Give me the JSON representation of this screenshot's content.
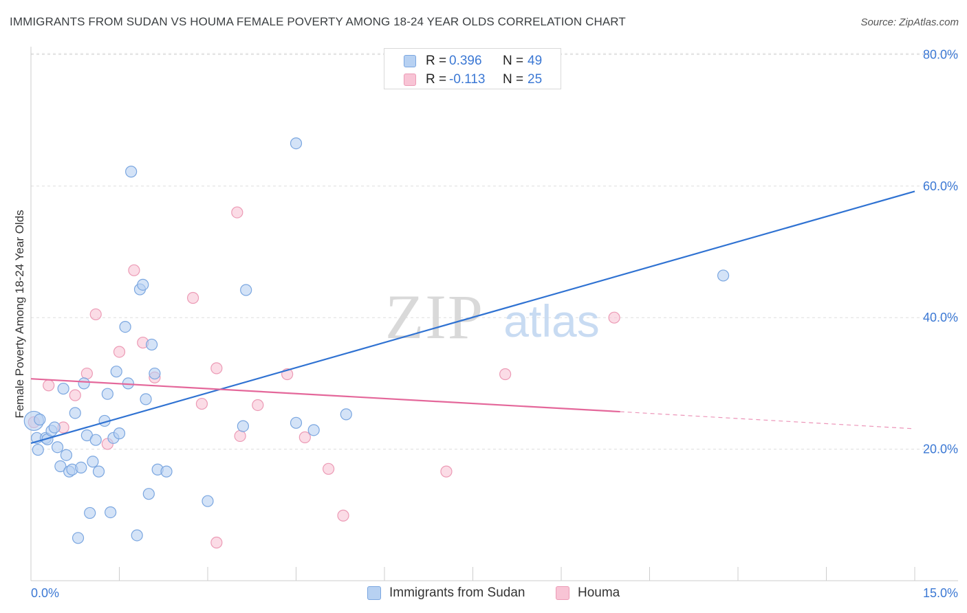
{
  "header": {
    "title": "IMMIGRANTS FROM SUDAN VS HOUMA FEMALE POVERTY AMONG 18-24 YEAR OLDS CORRELATION CHART",
    "source": "Source: ZipAtlas.com"
  },
  "watermark": {
    "zip": "ZIP",
    "atlas": "atlas"
  },
  "legend_top": {
    "rows": [
      {
        "r_label": "R =",
        "r_value": "0.396",
        "n_label": "N =",
        "n_value": "49"
      },
      {
        "r_label": "R =",
        "r_value": "-0.113",
        "n_label": "N =",
        "n_value": "25"
      }
    ]
  },
  "legend_bottom": {
    "items": [
      {
        "label": "Immigrants from Sudan"
      },
      {
        "label": "Houma"
      }
    ]
  },
  "colors": {
    "sudan_fill": "#b7d1f2",
    "sudan_stroke": "#7aa6e0",
    "sudan_line": "#2f72d2",
    "houma_fill": "#f8c4d5",
    "houma_stroke": "#ec9ab5",
    "houma_line": "#e4679a",
    "grid": "#dddddd",
    "axis_text": "#3b78d4"
  },
  "chart_data": {
    "type": "scatter",
    "title": "IMMIGRANTS FROM SUDAN VS HOUMA FEMALE POVERTY AMONG 18-24 YEAR OLDS CORRELATION CHART",
    "xlabel": "",
    "ylabel": "Female Poverty Among 18-24 Year Olds",
    "xlim": [
      0,
      15
    ],
    "ylim": [
      0,
      82
    ],
    "x_tick_labels": [
      "0.0%",
      "15.0%"
    ],
    "y_ticks": [
      20,
      40,
      60,
      80
    ],
    "y_tick_labels": [
      "20.0%",
      "40.0%",
      "60.0%",
      "80.0%"
    ],
    "grid": true,
    "legend_position": "top-center",
    "series": [
      {
        "name": "Immigrants from Sudan",
        "points": [
          [
            0.05,
            24.3
          ],
          [
            0.1,
            21.7
          ],
          [
            0.12,
            19.9
          ],
          [
            0.15,
            24.5
          ],
          [
            0.25,
            21.7
          ],
          [
            0.28,
            21.5
          ],
          [
            0.35,
            22.8
          ],
          [
            0.4,
            23.3
          ],
          [
            0.45,
            20.3
          ],
          [
            0.5,
            17.4
          ],
          [
            0.55,
            29.2
          ],
          [
            0.6,
            19.1
          ],
          [
            0.65,
            16.6
          ],
          [
            0.7,
            16.9
          ],
          [
            0.75,
            25.5
          ],
          [
            0.8,
            6.5
          ],
          [
            0.85,
            17.2
          ],
          [
            0.9,
            30.0
          ],
          [
            0.95,
            22.1
          ],
          [
            1.0,
            10.3
          ],
          [
            1.05,
            18.1
          ],
          [
            1.1,
            21.4
          ],
          [
            1.15,
            16.6
          ],
          [
            1.25,
            24.3
          ],
          [
            1.3,
            28.4
          ],
          [
            1.35,
            10.4
          ],
          [
            1.4,
            21.7
          ],
          [
            1.45,
            31.8
          ],
          [
            1.5,
            22.4
          ],
          [
            1.6,
            38.6
          ],
          [
            1.65,
            30.0
          ],
          [
            1.7,
            62.2
          ],
          [
            1.8,
            6.9
          ],
          [
            1.85,
            44.3
          ],
          [
            1.9,
            45.0
          ],
          [
            1.95,
            27.6
          ],
          [
            2.0,
            13.2
          ],
          [
            2.05,
            35.9
          ],
          [
            2.1,
            31.5
          ],
          [
            2.15,
            16.9
          ],
          [
            2.3,
            16.6
          ],
          [
            3.0,
            12.1
          ],
          [
            3.6,
            23.5
          ],
          [
            3.65,
            44.2
          ],
          [
            4.5,
            24.0
          ],
          [
            4.8,
            22.9
          ],
          [
            4.5,
            66.5
          ],
          [
            5.35,
            25.3
          ],
          [
            11.75,
            46.4
          ]
        ],
        "trend": {
          "x": [
            0.0,
            15.0
          ],
          "y": [
            20.9,
            59.2
          ]
        }
      },
      {
        "name": "Houma",
        "points": [
          [
            0.05,
            24.1
          ],
          [
            0.3,
            29.7
          ],
          [
            0.55,
            23.3
          ],
          [
            0.75,
            28.2
          ],
          [
            0.95,
            31.5
          ],
          [
            1.1,
            40.5
          ],
          [
            1.3,
            20.8
          ],
          [
            1.5,
            34.8
          ],
          [
            1.75,
            47.2
          ],
          [
            1.9,
            36.2
          ],
          [
            2.1,
            30.9
          ],
          [
            2.75,
            43.0
          ],
          [
            2.9,
            26.9
          ],
          [
            3.15,
            32.3
          ],
          [
            3.15,
            5.8
          ],
          [
            3.5,
            56.0
          ],
          [
            3.55,
            22.0
          ],
          [
            3.85,
            26.7
          ],
          [
            4.35,
            31.4
          ],
          [
            4.65,
            21.8
          ],
          [
            5.05,
            17.0
          ],
          [
            5.3,
            9.9
          ],
          [
            7.05,
            16.6
          ],
          [
            8.05,
            31.4
          ],
          [
            9.9,
            40.0
          ]
        ],
        "trend": {
          "x": [
            0.0,
            10.0
          ],
          "y": [
            30.7,
            25.7
          ]
        },
        "trend_dashed": {
          "x": [
            10.0,
            15.0
          ],
          "y": [
            25.7,
            23.1
          ]
        }
      }
    ]
  }
}
